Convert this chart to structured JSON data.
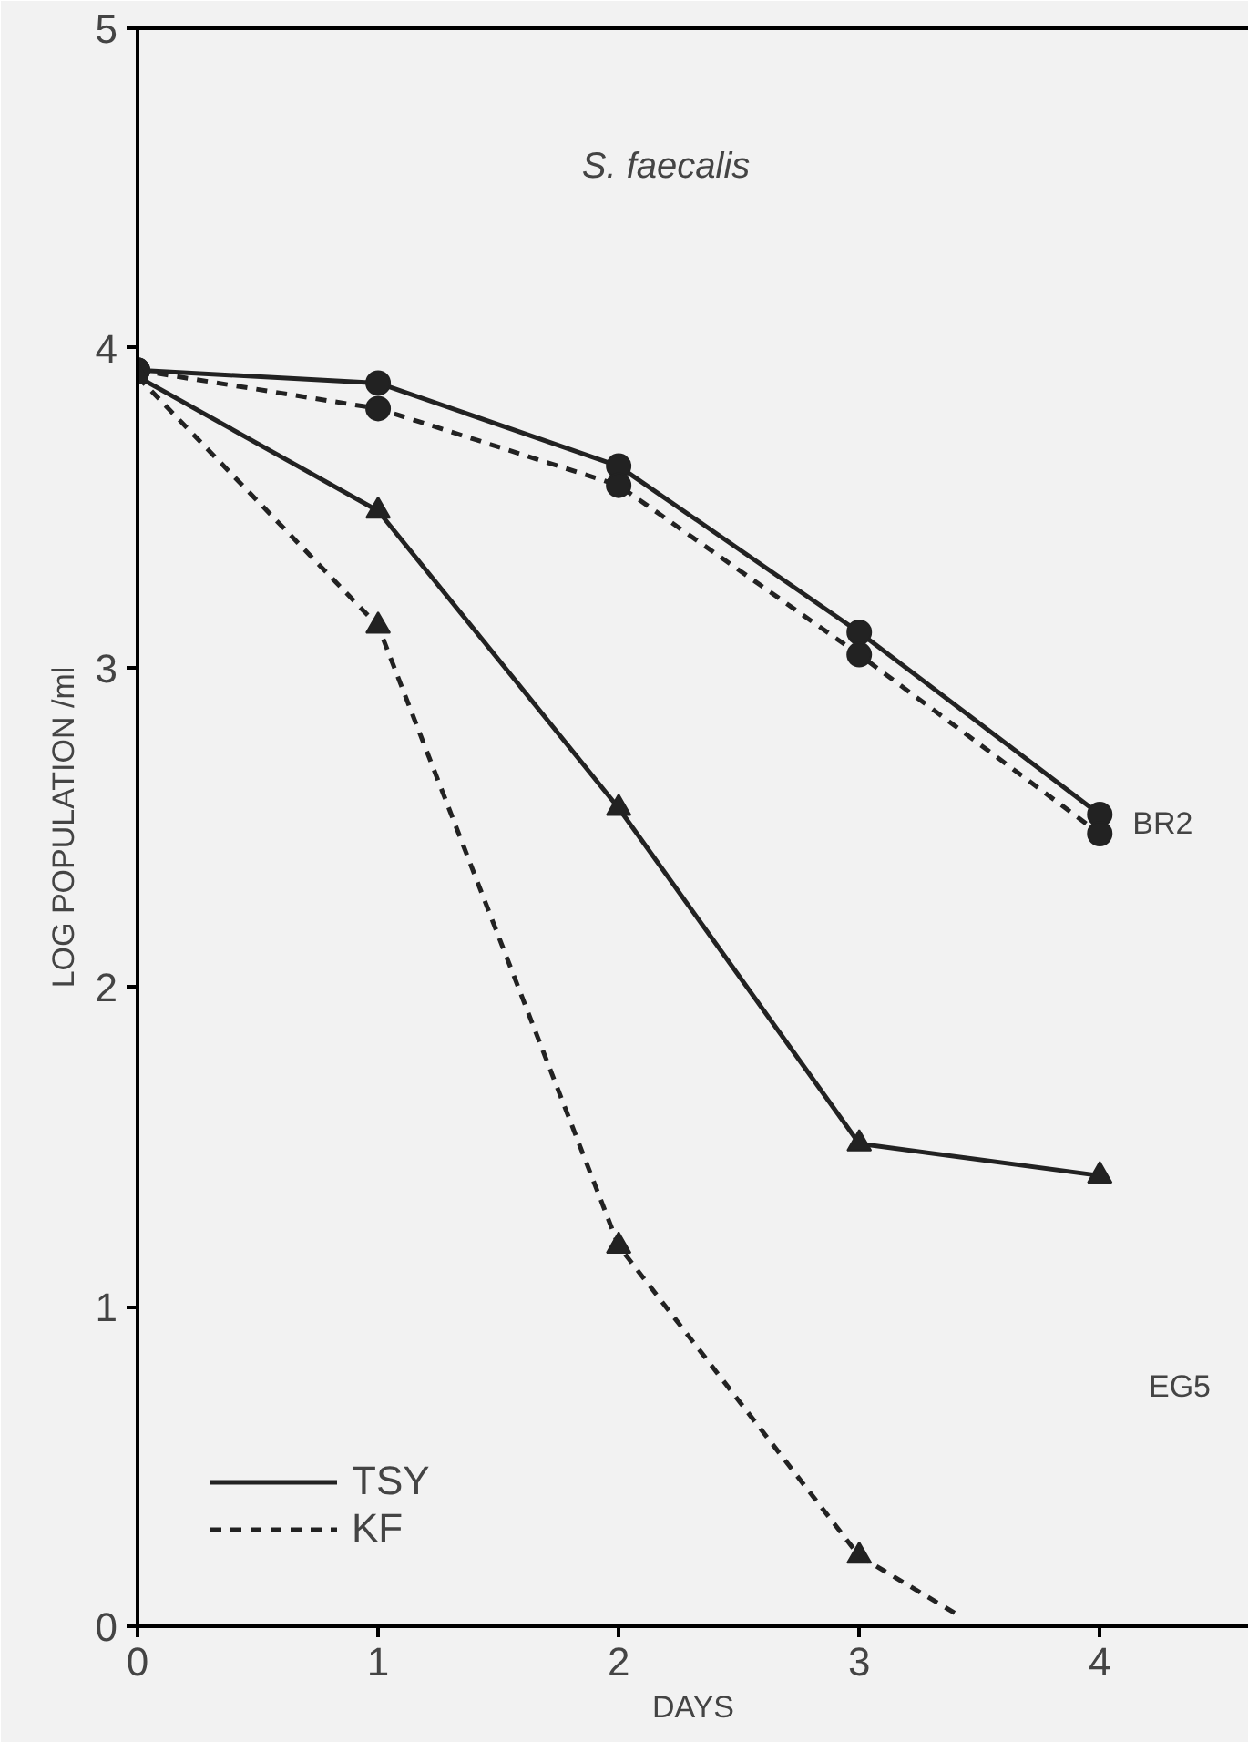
{
  "chart_data": {
    "type": "line",
    "title": "S. faecalis",
    "xlabel": "DAYS",
    "ylabel": "LOG POPULATION /ml",
    "x": [
      0,
      1,
      2,
      3,
      4
    ],
    "series": [
      {
        "name": "TSY",
        "color": "#222222",
        "values": [
          3.93,
          3.89,
          3.63,
          3.11,
          2.54
        ],
        "marker": "circle",
        "line_style": "solid"
      },
      {
        "name": "KF",
        "color": "#222222",
        "values": [
          3.93,
          3.81,
          3.57,
          3.04,
          2.48
        ],
        "marker": "circle",
        "line_style": "dashed"
      },
      {
        "color": "#222222",
        "values": [
          3.91,
          3.49,
          2.56,
          1.51,
          1.41
        ],
        "marker": "triangle",
        "line_style": "solid"
      },
      {
        "color": "#222222",
        "values": [
          3.91,
          3.13,
          1.19,
          0.22
        ],
        "x": [
          0,
          1,
          2,
          3
        ],
        "marker": "triangle",
        "line_style": "dashed"
      },
      {
        "color": "#222222",
        "values": [
          0.22,
          0.04
        ],
        "x": [
          3,
          3.4
        ],
        "marker": "none",
        "line_style": "dashed"
      }
    ],
    "annotations": [
      {
        "text": "BR2",
        "x": 4,
        "y": 2.51
      },
      "EG5"
    ],
    "xlim": [
      0,
      4.62
    ],
    "ylim": [
      0,
      5
    ],
    "xticks": [
      0,
      1,
      2,
      3,
      4
    ],
    "yticks": [
      0,
      1,
      2,
      3,
      4,
      5
    ],
    "grid": false,
    "legend": "bottom left"
  }
}
